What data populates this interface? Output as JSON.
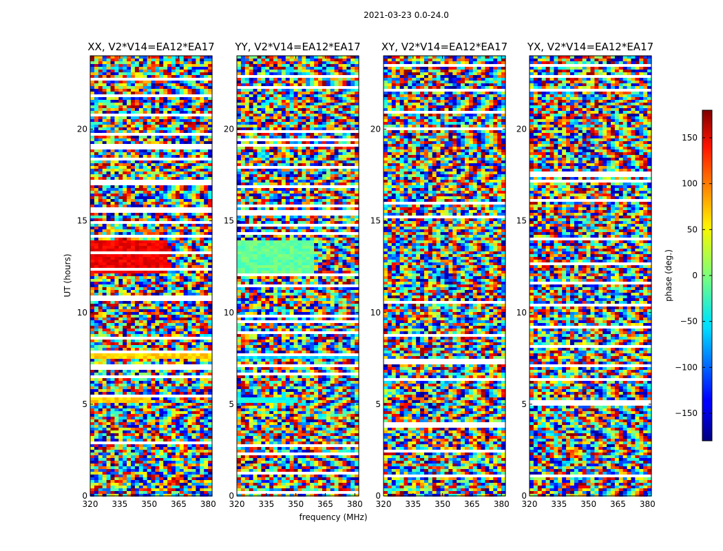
{
  "figure": {
    "suptitle": "2021-03-23 0.0-24.0",
    "xlabel": "frequency (MHz)",
    "ylabel": "UT (hours)",
    "colorbar_label": "phase (deg.)",
    "colorbar_ticks": [
      "150",
      "100",
      "50",
      "0",
      "−50",
      "−100",
      "−150"
    ],
    "colormap": "jet"
  },
  "chart_data": [
    {
      "type": "heatmap",
      "title": "XX, V2*V14=EA12*EA17",
      "xlabel": "frequency (MHz)",
      "ylabel": "UT (hours)",
      "xlim": [
        320,
        382
      ],
      "ylim": [
        0,
        24
      ],
      "xticks": [
        320,
        335,
        350,
        365,
        380
      ],
      "yticks": [
        0,
        5,
        10,
        15,
        20
      ],
      "zlim": [
        -180,
        180
      ],
      "features": [
        {
          "t": [
            12.2,
            14.0
          ],
          "f": [
            320,
            359
          ],
          "phase": 140,
          "note": "coherent red/orange block"
        },
        {
          "t": [
            7.5,
            7.8
          ],
          "f": [
            320,
            382
          ],
          "phase": 60
        },
        {
          "t": [
            5.0,
            5.3
          ],
          "f": [
            320,
            350
          ],
          "phase": 60
        }
      ]
    },
    {
      "type": "heatmap",
      "title": "YY, V2*V14=EA12*EA17",
      "xlabel": "frequency (MHz)",
      "ylabel": "",
      "xlim": [
        320,
        382
      ],
      "ylim": [
        0,
        24
      ],
      "xticks": [
        320,
        335,
        350,
        365,
        380
      ],
      "yticks": [
        0,
        5,
        10,
        15,
        20
      ],
      "zlim": [
        -180,
        180
      ],
      "features": [
        {
          "t": [
            12.2,
            14.0
          ],
          "f": [
            320,
            359
          ],
          "phase": -10,
          "note": "coherent cyan/green block"
        },
        {
          "t": [
            7.5,
            7.8
          ],
          "f": [
            320,
            382
          ],
          "phase": -60
        },
        {
          "t": [
            5.0,
            5.3
          ],
          "f": [
            320,
            350
          ],
          "phase": -40
        }
      ]
    },
    {
      "type": "heatmap",
      "title": "XY, V2*V14=EA12*EA17",
      "xlabel": "",
      "ylabel": "",
      "xlim": [
        320,
        382
      ],
      "ylim": [
        0,
        24
      ],
      "xticks": [
        320,
        335,
        350,
        365,
        380
      ],
      "yticks": [
        0,
        5,
        10,
        15,
        20
      ],
      "zlim": [
        -180,
        180
      ],
      "features": []
    },
    {
      "type": "heatmap",
      "title": "YX, V2*V14=EA12*EA17",
      "xlabel": "",
      "ylabel": "",
      "xlim": [
        320,
        382
      ],
      "ylim": [
        0,
        24
      ],
      "xticks": [
        320,
        335,
        350,
        365,
        380
      ],
      "yticks": [
        0,
        5,
        10,
        15,
        20
      ],
      "zlim": [
        -180,
        180
      ],
      "features": []
    }
  ]
}
